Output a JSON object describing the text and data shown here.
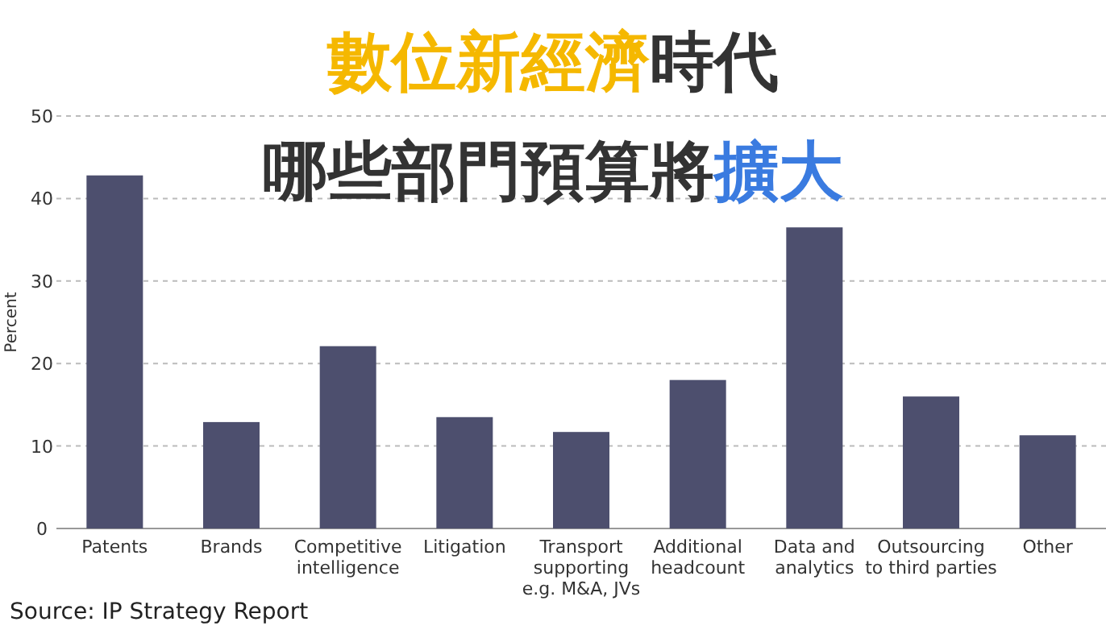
{
  "chart_data": {
    "type": "bar",
    "title": "數位新經濟時代",
    "subtitle": "哪些部門預算將擴大",
    "ylabel": "Percent",
    "categories": [
      "Patents",
      "Brands",
      "Competitive\nintelligence",
      "Litigation",
      "Transport\nsupporting\ne.g. M&A, JVs",
      "Additional\nheadcount",
      "Data and\nanalytics",
      "Outsourcing\nto third parties",
      "Other"
    ],
    "values": [
      42.8,
      12.9,
      22.1,
      13.5,
      11.7,
      18.0,
      36.5,
      16.0,
      11.3
    ],
    "color": "#4d4f6e",
    "ylim": [
      0,
      50
    ],
    "yticks": [
      0,
      10,
      20,
      30,
      40,
      50
    ],
    "grid": "y",
    "annotations": [
      "Source: IP Strategy Report"
    ]
  }
}
